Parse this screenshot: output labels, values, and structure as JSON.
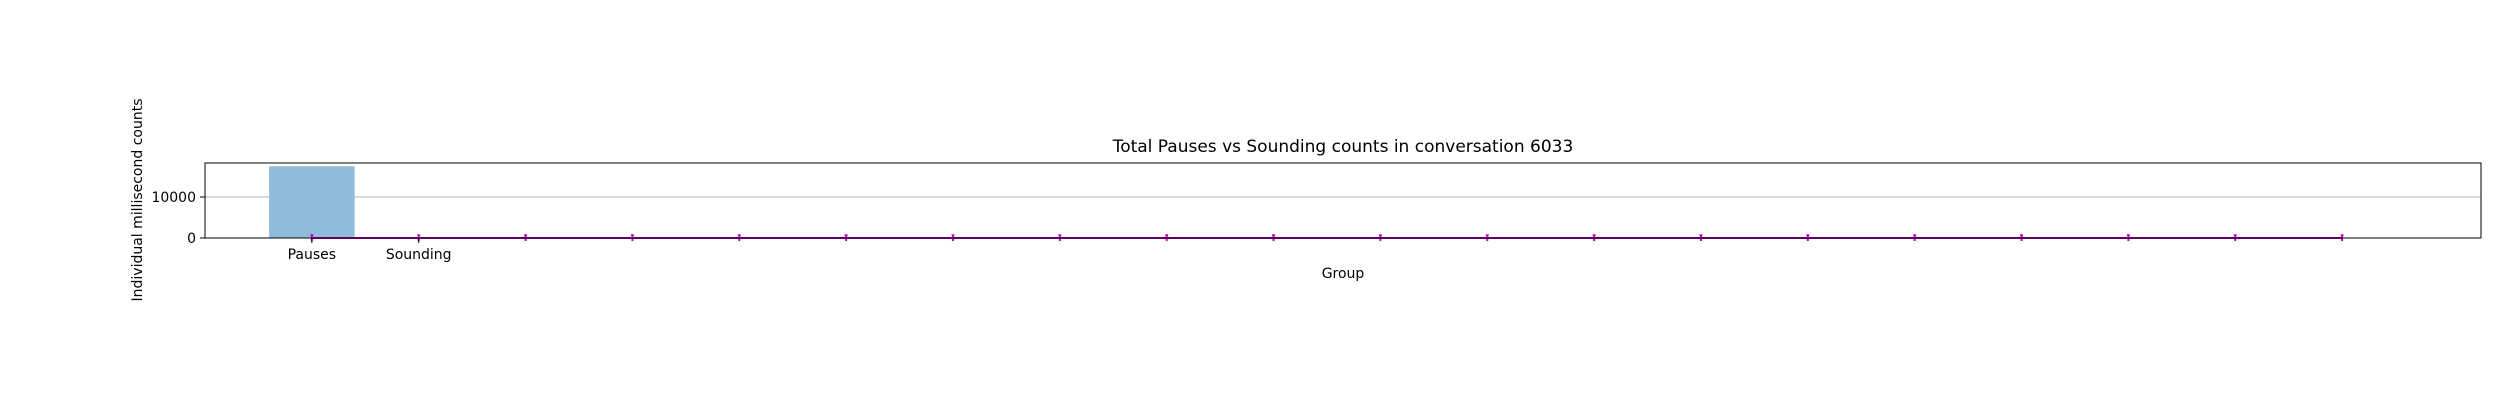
{
  "chart_data": {
    "type": "bar",
    "title": "Total Pauses vs Sounding counts in conversation 6033",
    "xlabel": "Group",
    "ylabel": "Individual millisecond counts",
    "categories": [
      "Pauses",
      "Sounding"
    ],
    "values": [
      17500,
      80
    ],
    "ylim": [
      0,
      18300
    ],
    "yticks": [
      0,
      10000
    ],
    "ytick_labels": [
      "0",
      "10000"
    ],
    "grid": true,
    "x_range": [
      -1,
      20.3
    ],
    "overlay_line": {
      "x": [
        0,
        1,
        2,
        3,
        4,
        5,
        6,
        7,
        8,
        9,
        10,
        11,
        12,
        13,
        14,
        15,
        16,
        17,
        18,
        19
      ],
      "values": [
        0,
        0,
        0,
        0,
        0,
        0,
        0,
        0,
        0,
        0,
        0,
        0,
        0,
        0,
        0,
        0,
        0,
        0,
        0,
        0
      ],
      "errors": [
        0,
        0,
        0,
        0,
        0,
        0,
        0,
        0,
        0,
        0,
        0,
        0,
        0,
        0,
        0,
        0,
        0,
        0,
        0,
        0
      ]
    },
    "colors": {
      "bar": "#90bcdb",
      "line": "#bf00bf",
      "grid": "#b0b0b0",
      "axis": "#000000"
    }
  }
}
